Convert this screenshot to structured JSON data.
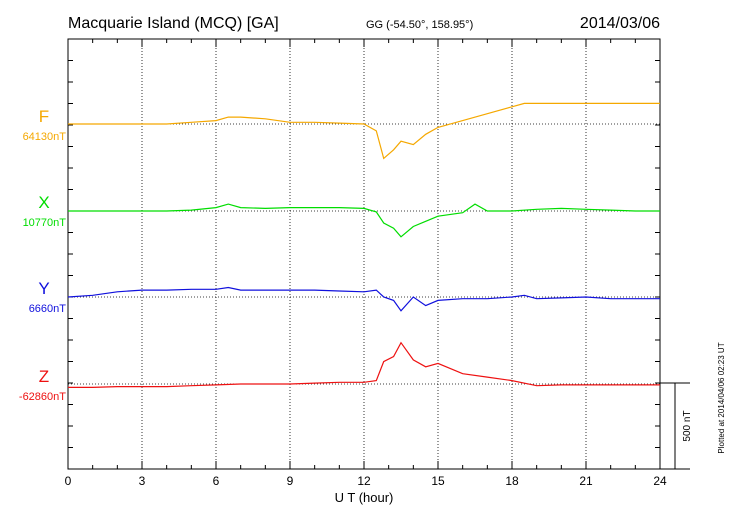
{
  "header": {
    "station": "Macquarie Island (MCQ)  [GA]",
    "coords": "GG (-54.50°, 158.95°)",
    "date": "2014/03/06"
  },
  "footer": {
    "plotted": "Plotted at 2014/04/06 02:23 UT"
  },
  "chart_data": {
    "type": "line",
    "xlabel": "U T (hour)",
    "xlim": [
      0,
      24
    ],
    "xticks": [
      0,
      3,
      6,
      9,
      12,
      15,
      18,
      21,
      24
    ],
    "scale_bar_label": "500 nT",
    "scale_bar_nT": 500,
    "series": [
      {
        "name": "F",
        "baseline_label": "64130nT",
        "color": "#f5a800",
        "x": [
          0,
          0.3,
          0.6,
          1,
          2,
          3,
          4,
          5,
          6,
          6.5,
          7,
          8,
          9,
          10,
          11,
          12,
          12.5,
          12.8,
          13.2,
          13.5,
          14,
          14.5,
          15,
          16,
          17,
          18,
          18.5,
          19,
          20,
          21,
          22,
          23,
          24
        ],
        "y": [
          0,
          0,
          0,
          0,
          0,
          0,
          0,
          10,
          20,
          40,
          40,
          30,
          10,
          10,
          5,
          0,
          -40,
          -200,
          -150,
          -100,
          -120,
          -60,
          -20,
          20,
          60,
          100,
          120,
          120,
          120,
          120,
          120,
          120,
          120
        ]
      },
      {
        "name": "X",
        "baseline_label": "10770nT",
        "color": "#00dd00",
        "x": [
          0,
          1,
          2,
          3,
          4,
          5,
          6,
          6.5,
          7,
          8,
          9,
          10,
          11,
          12,
          12.5,
          12.8,
          13.2,
          13.5,
          14,
          14.5,
          15,
          16,
          16.5,
          17,
          18,
          19,
          20,
          21,
          22,
          23,
          24
        ],
        "y": [
          0,
          0,
          0,
          0,
          0,
          5,
          20,
          40,
          20,
          15,
          20,
          20,
          20,
          15,
          -5,
          -70,
          -100,
          -150,
          -90,
          -60,
          -30,
          -10,
          40,
          0,
          0,
          10,
          15,
          10,
          5,
          0,
          0
        ]
      },
      {
        "name": "Y",
        "baseline_label": "6660nT",
        "color": "#1010dd",
        "x": [
          0,
          1,
          2,
          3,
          4,
          5,
          6,
          6.5,
          7,
          8,
          9,
          10,
          11,
          12,
          12.5,
          12.8,
          13.2,
          13.5,
          14,
          14.5,
          15,
          16,
          17,
          18,
          18.5,
          19,
          20,
          21,
          22,
          23,
          24
        ],
        "y": [
          0,
          10,
          30,
          40,
          40,
          45,
          45,
          55,
          40,
          40,
          40,
          40,
          35,
          30,
          40,
          0,
          -20,
          -80,
          0,
          -50,
          -20,
          -10,
          -10,
          0,
          10,
          -10,
          -5,
          0,
          -10,
          -10,
          -10
        ]
      },
      {
        "name": "Z",
        "baseline_label": "-62860nT",
        "color": "#ee1111",
        "x": [
          0,
          1,
          2,
          3,
          4,
          5,
          6,
          7,
          8,
          9,
          10,
          11,
          12,
          12.5,
          12.8,
          13.2,
          13.5,
          14,
          14.5,
          15,
          16,
          17,
          18,
          19,
          20,
          21,
          22,
          23,
          24
        ],
        "y": [
          -20,
          -20,
          -15,
          -15,
          -15,
          -10,
          -5,
          0,
          0,
          0,
          5,
          10,
          10,
          20,
          130,
          160,
          240,
          140,
          100,
          120,
          60,
          40,
          20,
          -10,
          -5,
          -5,
          -5,
          -5,
          -5
        ]
      }
    ]
  }
}
